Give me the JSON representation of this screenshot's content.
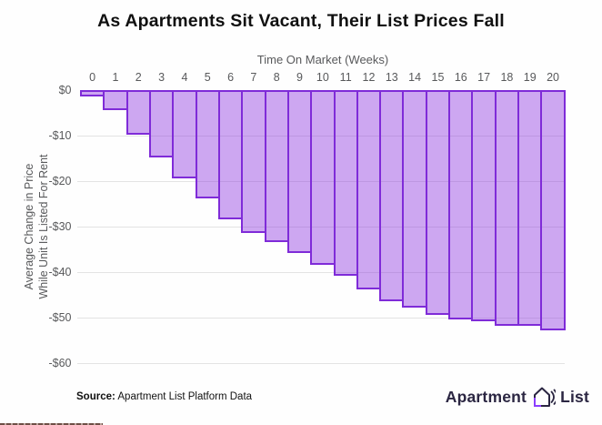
{
  "title": "As Apartments Sit Vacant, Their List Prices Fall",
  "chart_data": {
    "type": "bar",
    "title": "As Apartments Sit Vacant, Their List Prices Fall",
    "xlabel": "Time On Market (Weeks)",
    "ylabel": "Average Change in Price\nWhile Unit Is Listed For Rent",
    "categories": [
      "0",
      "1",
      "2",
      "3",
      "4",
      "5",
      "6",
      "7",
      "8",
      "9",
      "10",
      "11",
      "12",
      "13",
      "14",
      "15",
      "16",
      "17",
      "18",
      "19",
      "20"
    ],
    "values": [
      -1,
      -4,
      -9.5,
      -14.5,
      -19,
      -23.5,
      -28,
      -31,
      -33,
      -35.5,
      -38,
      -40.5,
      -43.5,
      -46,
      -47.5,
      -49,
      -50,
      -50.5,
      -51.5,
      -51.5,
      -52.5
    ],
    "y_ticks": [
      {
        "label": "$0",
        "value": 0
      },
      {
        "label": "-$10",
        "value": -10
      },
      {
        "label": "-$20",
        "value": -20
      },
      {
        "label": "-$30",
        "value": -30
      },
      {
        "label": "-$40",
        "value": -40
      },
      {
        "label": "-$50",
        "value": -50
      },
      {
        "label": "-$60",
        "value": -60
      }
    ],
    "ylim": [
      -60,
      0
    ],
    "legend": "none",
    "grid": "horizontal",
    "x_axis_position": "top",
    "bar_fill": "#C9A5EC",
    "bar_border": "#7F2BD8",
    "gridline_color": "#E3E3E3",
    "axis_text_color": "#58595B"
  },
  "footer": {
    "source_label": "Source:",
    "source_text": " Apartment List Platform Data"
  },
  "logo": {
    "word_left": "Apartment",
    "word_right": "List",
    "icon": "apartment-list-house-icon",
    "text_color": "#2B2642",
    "accent_color": "#8B3DFF"
  }
}
